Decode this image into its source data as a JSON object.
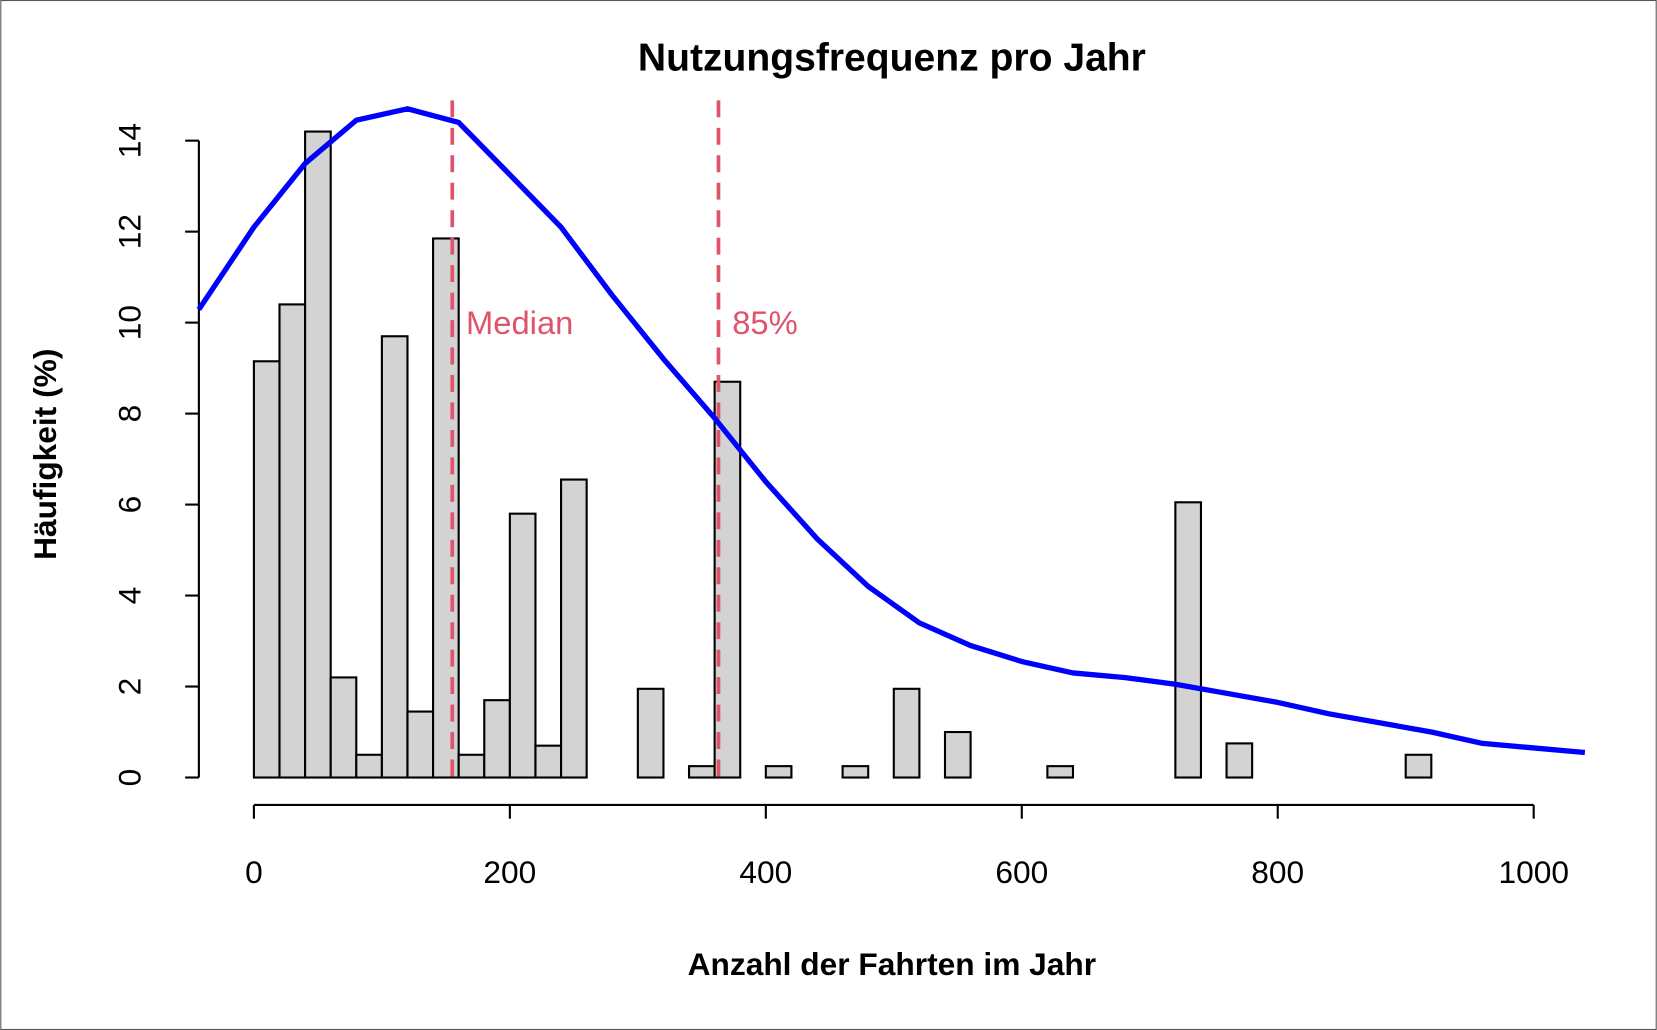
{
  "chart_data": {
    "type": "histogram",
    "title": "Nutzungsfrequenz pro Jahr",
    "xlabel": "Anzahl der Fahrten im Jahr",
    "ylabel": "Häufigkeit (%)",
    "bins": [
      0,
      20,
      40,
      60,
      80,
      100,
      120,
      140,
      160,
      180,
      200,
      220,
      240,
      260,
      280,
      300,
      320,
      340,
      360,
      380,
      400,
      420,
      440,
      460,
      480,
      500,
      520,
      540,
      560,
      580,
      600,
      620,
      640,
      660,
      680,
      700,
      720,
      740,
      760,
      780,
      800,
      820,
      840,
      860,
      880,
      900,
      920,
      940,
      960,
      980,
      1000
    ],
    "values": [
      9.15,
      10.4,
      14.2,
      2.2,
      0.5,
      9.7,
      1.45,
      11.85,
      0.5,
      1.7,
      5.8,
      0.7,
      6.55,
      0,
      0,
      1.95,
      0,
      0.25,
      8.7,
      0,
      0.25,
      0,
      0,
      0.25,
      0,
      1.95,
      0,
      1.0,
      0,
      0,
      0,
      0.25,
      0,
      0,
      0,
      0,
      6.05,
      0,
      0.75,
      0,
      0,
      0,
      0,
      0,
      0,
      0.5,
      0,
      0,
      0,
      0
    ],
    "color": "#d3d3d3",
    "xlim": [
      -43,
      1040
    ],
    "ylim": [
      0,
      14.7
    ],
    "xticks": [
      0,
      200,
      400,
      600,
      800,
      1000
    ],
    "yticks": [
      0,
      2,
      4,
      6,
      8,
      10,
      12,
      14
    ],
    "density": {
      "color": "#0000ff",
      "x": [
        -43,
        0,
        40,
        80,
        120,
        160,
        200,
        240,
        280,
        320,
        360,
        400,
        440,
        480,
        520,
        560,
        600,
        640,
        680,
        720,
        760,
        800,
        840,
        880,
        920,
        960,
        1000,
        1040
      ],
      "values": [
        10.29,
        12.1,
        13.5,
        14.45,
        14.7,
        14.4,
        13.25,
        12.1,
        10.6,
        9.2,
        7.9,
        6.5,
        5.25,
        4.2,
        3.4,
        2.9,
        2.55,
        2.3,
        2.2,
        2.05,
        1.85,
        1.65,
        1.4,
        1.2,
        1.0,
        0.75,
        0.65,
        0.55
      ]
    },
    "vlines": [
      {
        "x": 155,
        "label": "Median",
        "color": "#df536b"
      },
      {
        "x": 363,
        "label": "85%",
        "color": "#df536b"
      }
    ]
  }
}
